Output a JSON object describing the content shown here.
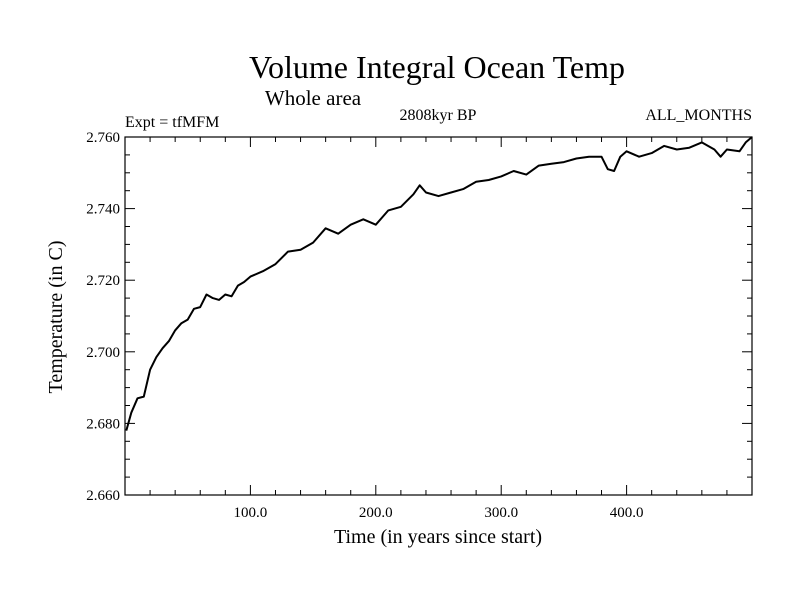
{
  "chart_data": {
    "type": "line",
    "title": "Volume Integral Ocean Temp",
    "subtitle": "Whole area",
    "left_note": "Expt = tfMFM",
    "center_note": "2808kyr BP",
    "right_note": "ALL_MONTHS",
    "xlabel": "Time (in years since start)",
    "ylabel": "Temperature (in C)",
    "xlim": [
      0,
      500
    ],
    "ylim": [
      2.66,
      2.76
    ],
    "grid": false,
    "x_ticks": [
      {
        "value": 100,
        "label": "100.0"
      },
      {
        "value": 200,
        "label": "200.0"
      },
      {
        "value": 300,
        "label": "300.0"
      },
      {
        "value": 400,
        "label": "400.0"
      }
    ],
    "y_ticks": [
      {
        "value": 2.66,
        "label": "2.660"
      },
      {
        "value": 2.68,
        "label": "2.680"
      },
      {
        "value": 2.7,
        "label": "2.700"
      },
      {
        "value": 2.72,
        "label": "2.720"
      },
      {
        "value": 2.74,
        "label": "2.740"
      },
      {
        "value": 2.76,
        "label": "2.760"
      }
    ],
    "series": [
      {
        "name": "Volume integral ocean temperature",
        "color": "#000000",
        "x": [
          1,
          5,
          10,
          15,
          20,
          25,
          30,
          35,
          40,
          45,
          50,
          55,
          60,
          65,
          70,
          75,
          80,
          85,
          90,
          95,
          100,
          110,
          120,
          130,
          140,
          150,
          160,
          170,
          180,
          190,
          200,
          210,
          220,
          230,
          235,
          240,
          250,
          260,
          270,
          280,
          290,
          300,
          310,
          320,
          330,
          340,
          350,
          360,
          370,
          380,
          385,
          390,
          395,
          400,
          410,
          420,
          430,
          440,
          450,
          460,
          470,
          475,
          480,
          490,
          495,
          500
        ],
        "y": [
          2.678,
          2.683,
          2.687,
          2.6875,
          2.695,
          2.6985,
          2.701,
          2.703,
          2.706,
          2.708,
          2.709,
          2.712,
          2.7125,
          2.716,
          2.715,
          2.7145,
          2.716,
          2.7155,
          2.7185,
          2.7195,
          2.721,
          2.7225,
          2.7245,
          2.728,
          2.7285,
          2.7305,
          2.7345,
          2.733,
          2.7355,
          2.737,
          2.7355,
          2.7395,
          2.7405,
          2.744,
          2.7465,
          2.7445,
          2.7435,
          2.7445,
          2.7455,
          2.7475,
          2.748,
          2.749,
          2.7505,
          2.7495,
          2.752,
          2.7525,
          2.753,
          2.754,
          2.7545,
          2.7545,
          2.751,
          2.7505,
          2.7545,
          2.756,
          2.7545,
          2.7555,
          2.7575,
          2.7565,
          2.757,
          2.7585,
          2.7565,
          2.7545,
          2.7565,
          2.756,
          2.7585,
          2.76
        ]
      }
    ]
  }
}
